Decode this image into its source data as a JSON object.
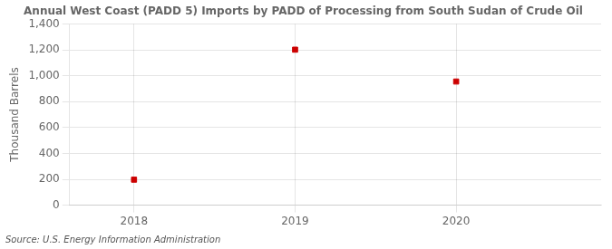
{
  "chart_data": {
    "type": "scatter",
    "title": "Annual West Coast (PADD 5) Imports by PADD of Processing from South Sudan of Crude Oil",
    "ylabel": "Thousand Barrels",
    "source": "Source: U.S. Energy Information Administration",
    "x": [
      2018,
      2019,
      2020
    ],
    "values": [
      197,
      1201,
      955
    ],
    "color": "#cc0000",
    "marker": "square",
    "xlim": [
      2017.6,
      2020.9
    ],
    "xticks": [
      2018,
      2019,
      2020
    ],
    "ylim": [
      0,
      1400
    ],
    "yticks": [
      0,
      200,
      400,
      600,
      800,
      {
        "value": 1000,
        "label": "1,000"
      },
      {
        "value": 1200,
        "label": "1,200"
      },
      {
        "value": 1400,
        "label": "1,400"
      }
    ],
    "grid": true
  }
}
